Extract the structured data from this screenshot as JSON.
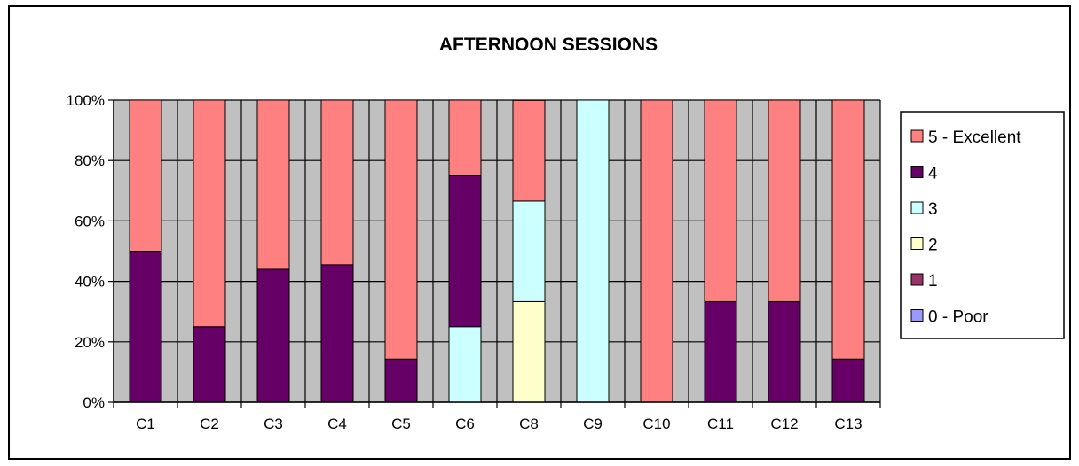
{
  "chart_data": {
    "type": "bar",
    "stacked": "percent",
    "title": "AFTERNOON SESSIONS",
    "xlabel": "",
    "ylabel": "",
    "ylim": [
      0,
      100
    ],
    "yticks": [
      "0%",
      "20%",
      "40%",
      "60%",
      "80%",
      "100%"
    ],
    "categories": [
      "C1",
      "C2",
      "C3",
      "C4",
      "C5",
      "C6",
      "C8",
      "C9",
      "C10",
      "C11",
      "C12",
      "C13"
    ],
    "series": [
      {
        "name": "0 - Poor",
        "color": "#9999FF",
        "values": [
          0,
          0,
          0,
          0,
          0,
          0,
          0,
          0,
          0,
          0,
          0,
          0
        ]
      },
      {
        "name": "1",
        "color": "#993366",
        "values": [
          0,
          0,
          0,
          0,
          0,
          0,
          0,
          0,
          0,
          0,
          0,
          0
        ]
      },
      {
        "name": "2",
        "color": "#FFFFCC",
        "values": [
          0,
          0,
          0,
          0,
          0,
          0,
          33.3,
          0,
          0,
          0,
          0,
          0
        ]
      },
      {
        "name": "3",
        "color": "#CCFFFF",
        "values": [
          0,
          0,
          0,
          0,
          0,
          25,
          33.3,
          100,
          0,
          0,
          0,
          0
        ]
      },
      {
        "name": "4",
        "color": "#660066",
        "values": [
          50,
          25,
          44,
          45.5,
          14.3,
          50,
          0,
          0,
          0,
          33.3,
          33.3,
          14.3
        ]
      },
      {
        "name": "5 - Excellent",
        "color": "#FF8080",
        "values": [
          50,
          75,
          56,
          54.5,
          85.7,
          25,
          33.3,
          0,
          100,
          66.7,
          66.7,
          85.7
        ]
      }
    ],
    "legend_order": [
      "5 - Excellent",
      "4",
      "3",
      "2",
      "1",
      "0 - Poor"
    ],
    "grid": true,
    "plot_background": "#C0C0C0",
    "legend_position": "right"
  }
}
